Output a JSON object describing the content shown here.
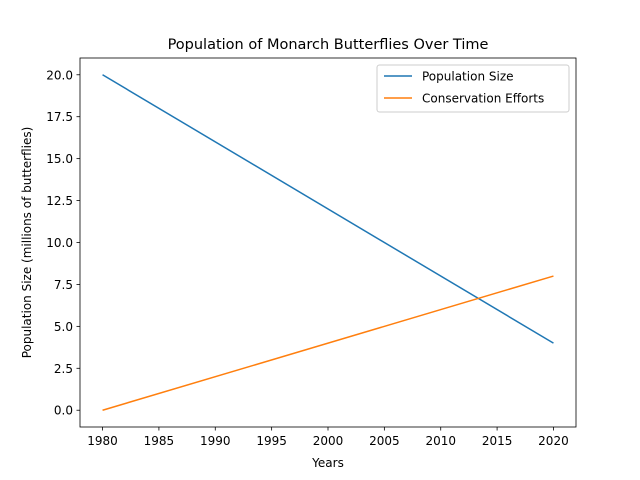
{
  "chart_data": {
    "type": "line",
    "title": "Population of Monarch Butterflies Over Time",
    "xlabel": "Years",
    "ylabel": "Population Size (millions of butterflies)",
    "x": [
      1980,
      2020
    ],
    "xlim": [
      1978,
      2022
    ],
    "ylim": [
      -1,
      21
    ],
    "xticks": [
      1980,
      1985,
      1990,
      1995,
      2000,
      2005,
      2010,
      2015,
      2020
    ],
    "yticks": [
      0.0,
      2.5,
      5.0,
      7.5,
      10.0,
      12.5,
      15.0,
      17.5,
      20.0
    ],
    "xtick_labels": [
      "1980",
      "1985",
      "1990",
      "1995",
      "2000",
      "2005",
      "2010",
      "2015",
      "2020"
    ],
    "ytick_labels": [
      "0.0",
      "2.5",
      "5.0",
      "7.5",
      "10.0",
      "12.5",
      "15.0",
      "17.5",
      "20.0"
    ],
    "grid": false,
    "legend_position": "top-right",
    "series": [
      {
        "name": "Population Size",
        "color": "#1f77b4",
        "values": [
          20,
          4
        ]
      },
      {
        "name": "Conservation Efforts",
        "color": "#ff7f0e",
        "values": [
          0,
          8
        ]
      }
    ]
  }
}
